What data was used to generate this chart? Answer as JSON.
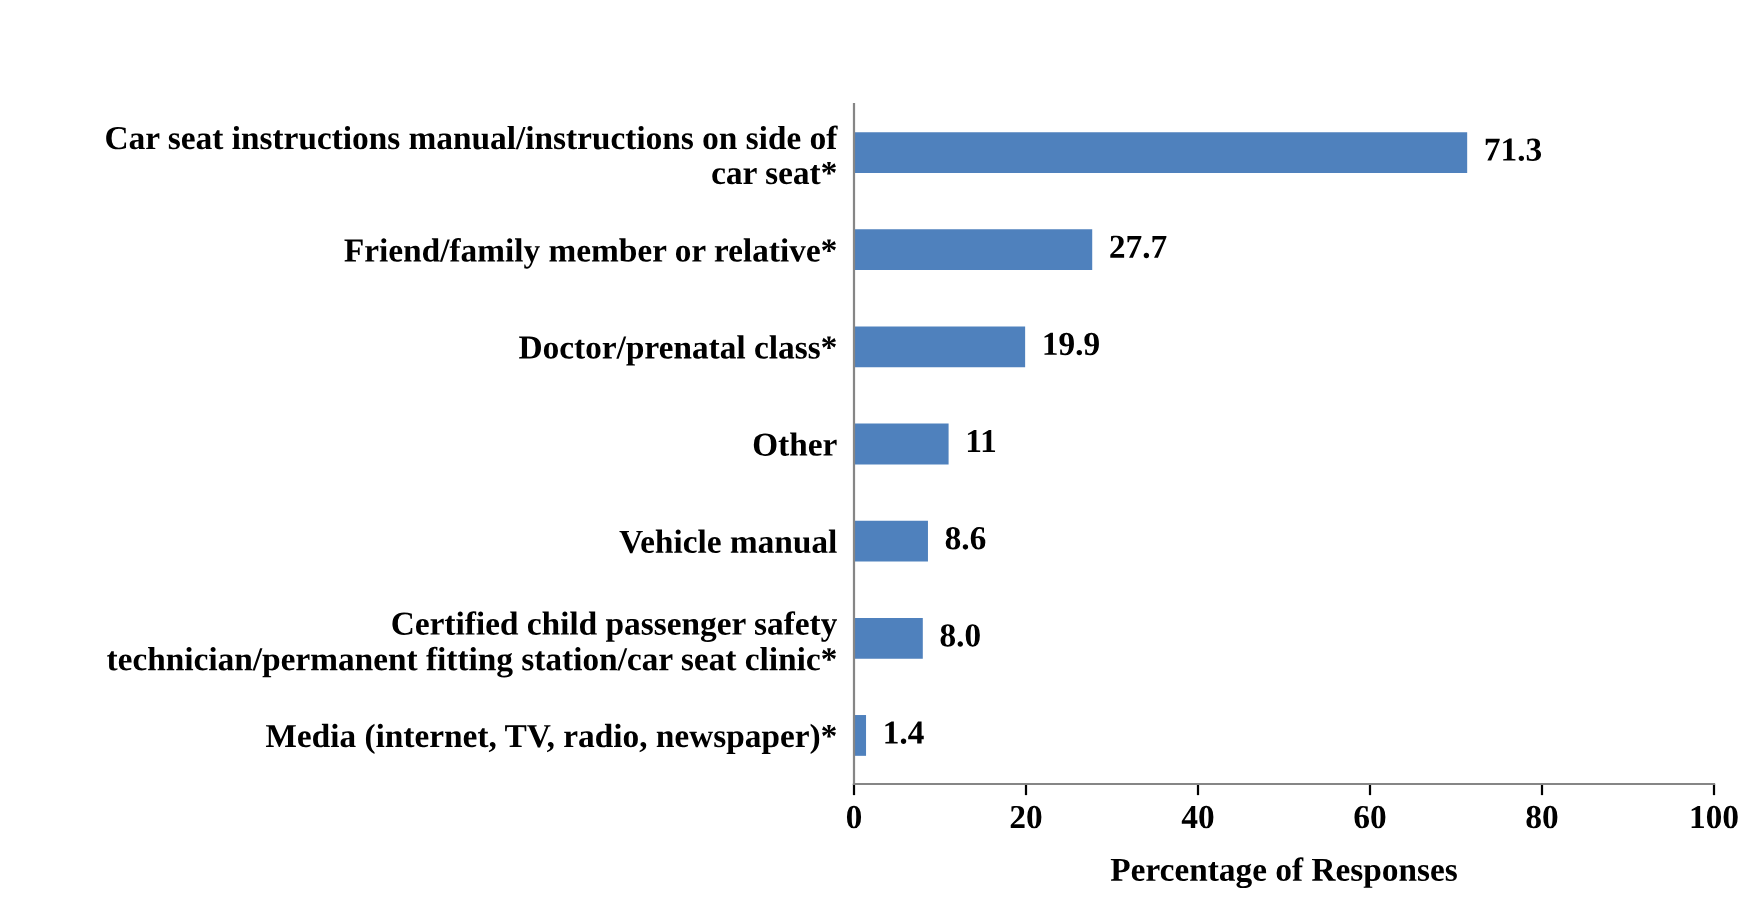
{
  "chart_data": {
    "type": "bar",
    "orientation": "horizontal",
    "xlabel": "Percentage of Responses",
    "categories": [
      "Car seat instructions manual/instructions on side of\ncar seat*",
      "Friend/family member or relative*",
      "Doctor/prenatal class*",
      "Other",
      "Vehicle manual",
      "Certified child passenger safety\ntechnician/permanent fitting station/car seat clinic*",
      "Media (internet, TV, radio, newspaper)*"
    ],
    "values": [
      71.3,
      27.7,
      19.9,
      11,
      8.6,
      8.0,
      1.4
    ],
    "value_labels": [
      "71.3",
      "27.7",
      "19.9",
      "11",
      "8.6",
      "8.0",
      "1.4"
    ],
    "color": "#4f81bd",
    "xlim": [
      0,
      100
    ],
    "xticks": [
      0,
      20,
      40,
      60,
      80,
      100
    ],
    "grid": false,
    "legend": false
  }
}
